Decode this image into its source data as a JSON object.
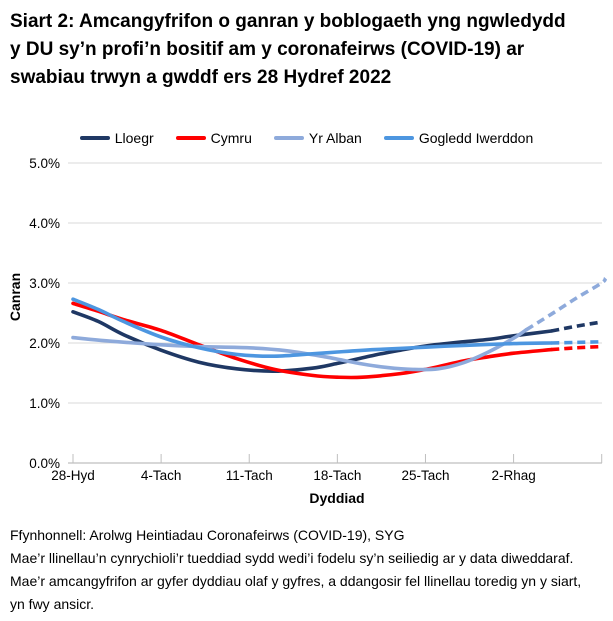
{
  "page": {
    "title": "Siart 2: Amcangyfrifon o ganran y boblogaeth yng ngwledydd y DU sy’n profi’n bositif am y coronafeirws (COVID-19) ar swabiau trwyn a gwddf ers 28 Hydref 2022"
  },
  "chart_data": {
    "type": "line",
    "xlabel": "Dyddiad",
    "ylabel": "Canran",
    "x_axis": {
      "start_date_label": "28 Hydref 2022",
      "tick_days": [
        0,
        7,
        14,
        21,
        28,
        35,
        42
      ],
      "tick_labels": [
        "28-Hyd",
        "4-Tach",
        "11-Tach",
        "18-Tach",
        "25-Tach",
        "2-Rhag",
        ""
      ],
      "domain_days": [
        0,
        42.3
      ]
    },
    "y_axis": {
      "min": 0,
      "max": 5,
      "tick_labels": [
        "0.0%",
        "1.0%",
        "2.0%",
        "3.0%",
        "4.0%",
        "5.0%"
      ],
      "grid": true
    },
    "legend_position": "top",
    "series": [
      {
        "name": "Lloegr",
        "color": "#1F3864",
        "solid": [
          [
            0,
            2.52
          ],
          [
            2,
            2.36
          ],
          [
            4,
            2.14
          ],
          [
            7,
            1.88
          ],
          [
            10,
            1.68
          ],
          [
            13,
            1.57
          ],
          [
            16,
            1.53
          ],
          [
            19,
            1.58
          ],
          [
            21,
            1.66
          ],
          [
            24,
            1.8
          ],
          [
            26,
            1.88
          ],
          [
            28,
            1.95
          ],
          [
            31,
            2.02
          ],
          [
            33,
            2.06
          ],
          [
            35,
            2.12
          ],
          [
            38,
            2.2
          ]
        ],
        "dashed": [
          [
            38,
            2.2
          ],
          [
            40,
            2.28
          ],
          [
            42,
            2.35
          ]
        ]
      },
      {
        "name": "Cymru",
        "color": "#FF0000",
        "solid": [
          [
            0,
            2.66
          ],
          [
            2,
            2.53
          ],
          [
            4,
            2.39
          ],
          [
            7,
            2.21
          ],
          [
            10,
            1.97
          ],
          [
            13,
            1.74
          ],
          [
            16,
            1.56
          ],
          [
            19,
            1.46
          ],
          [
            21,
            1.43
          ],
          [
            23,
            1.43
          ],
          [
            26,
            1.49
          ],
          [
            28,
            1.56
          ],
          [
            31,
            1.7
          ],
          [
            33,
            1.77
          ],
          [
            35,
            1.83
          ],
          [
            38,
            1.89
          ]
        ],
        "dashed": [
          [
            38,
            1.89
          ],
          [
            40,
            1.92
          ],
          [
            42,
            1.94
          ]
        ]
      },
      {
        "name": "Yr Alban",
        "color": "#8EAADB",
        "solid": [
          [
            0,
            2.09
          ],
          [
            3,
            2.03
          ],
          [
            7,
            1.97
          ],
          [
            10,
            1.94
          ],
          [
            14,
            1.92
          ],
          [
            17,
            1.87
          ],
          [
            20,
            1.77
          ],
          [
            23,
            1.65
          ],
          [
            25,
            1.59
          ],
          [
            27,
            1.56
          ],
          [
            29,
            1.57
          ],
          [
            31,
            1.67
          ],
          [
            33,
            1.85
          ],
          [
            35,
            2.08
          ],
          [
            36,
            2.22
          ]
        ],
        "dashed": [
          [
            36,
            2.22
          ],
          [
            38,
            2.48
          ],
          [
            40,
            2.75
          ],
          [
            42,
            3.0
          ],
          [
            42.3,
            3.08
          ]
        ]
      },
      {
        "name": "Gogledd Iwerddon",
        "color": "#4D96E0",
        "solid": [
          [
            0,
            2.73
          ],
          [
            2,
            2.56
          ],
          [
            4,
            2.36
          ],
          [
            7,
            2.1
          ],
          [
            10,
            1.92
          ],
          [
            13,
            1.81
          ],
          [
            16,
            1.78
          ],
          [
            19,
            1.82
          ],
          [
            21,
            1.85
          ],
          [
            24,
            1.89
          ],
          [
            28,
            1.93
          ],
          [
            31,
            1.96
          ],
          [
            35,
            1.99
          ],
          [
            38,
            2.0
          ]
        ],
        "dashed": [
          [
            38,
            2.0
          ],
          [
            40,
            2.01
          ],
          [
            42,
            2.02
          ]
        ]
      }
    ]
  },
  "footer": {
    "source": "Ffynhonnell: Arolwg Heintiadau Coronafeirws (COVID-19), SYG",
    "note": "Mae’r llinellau’n cynrychioli’r tueddiad sydd wedi’i fodelu sy’n seiliedig ar y data diweddaraf. Mae’r amcangyfrifon ar gyfer dyddiau olaf y gyfres, a ddangosir fel llinellau toredig yn y siart, yn fwy ansicr."
  },
  "style_colors": {
    "gridline": "#D9D9D9",
    "axis": "#BFBFBF",
    "text": "#000000"
  }
}
